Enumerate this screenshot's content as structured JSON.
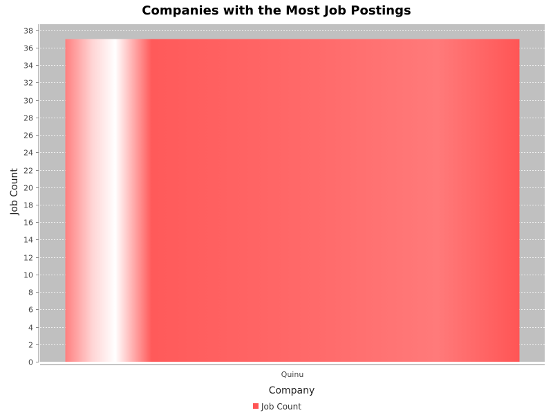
{
  "chart_data": {
    "type": "bar",
    "title": "Companies with the Most Job Postings",
    "xlabel": "Company",
    "ylabel": "Job Count",
    "categories": [
      "Quinu"
    ],
    "series": [
      {
        "name": "Job Count",
        "values": [
          37
        ]
      }
    ],
    "ylim": [
      0,
      38.7
    ],
    "yticks": [
      0,
      2,
      4,
      6,
      8,
      10,
      12,
      14,
      16,
      18,
      20,
      22,
      24,
      26,
      28,
      30,
      32,
      34,
      36,
      38
    ],
    "grid": true,
    "legend_position": "bottom",
    "colors": {
      "bar": "#ff5555",
      "plot_background": "#c0c0c0",
      "gridline": "#ffffff",
      "axis_text": "#444444"
    }
  }
}
